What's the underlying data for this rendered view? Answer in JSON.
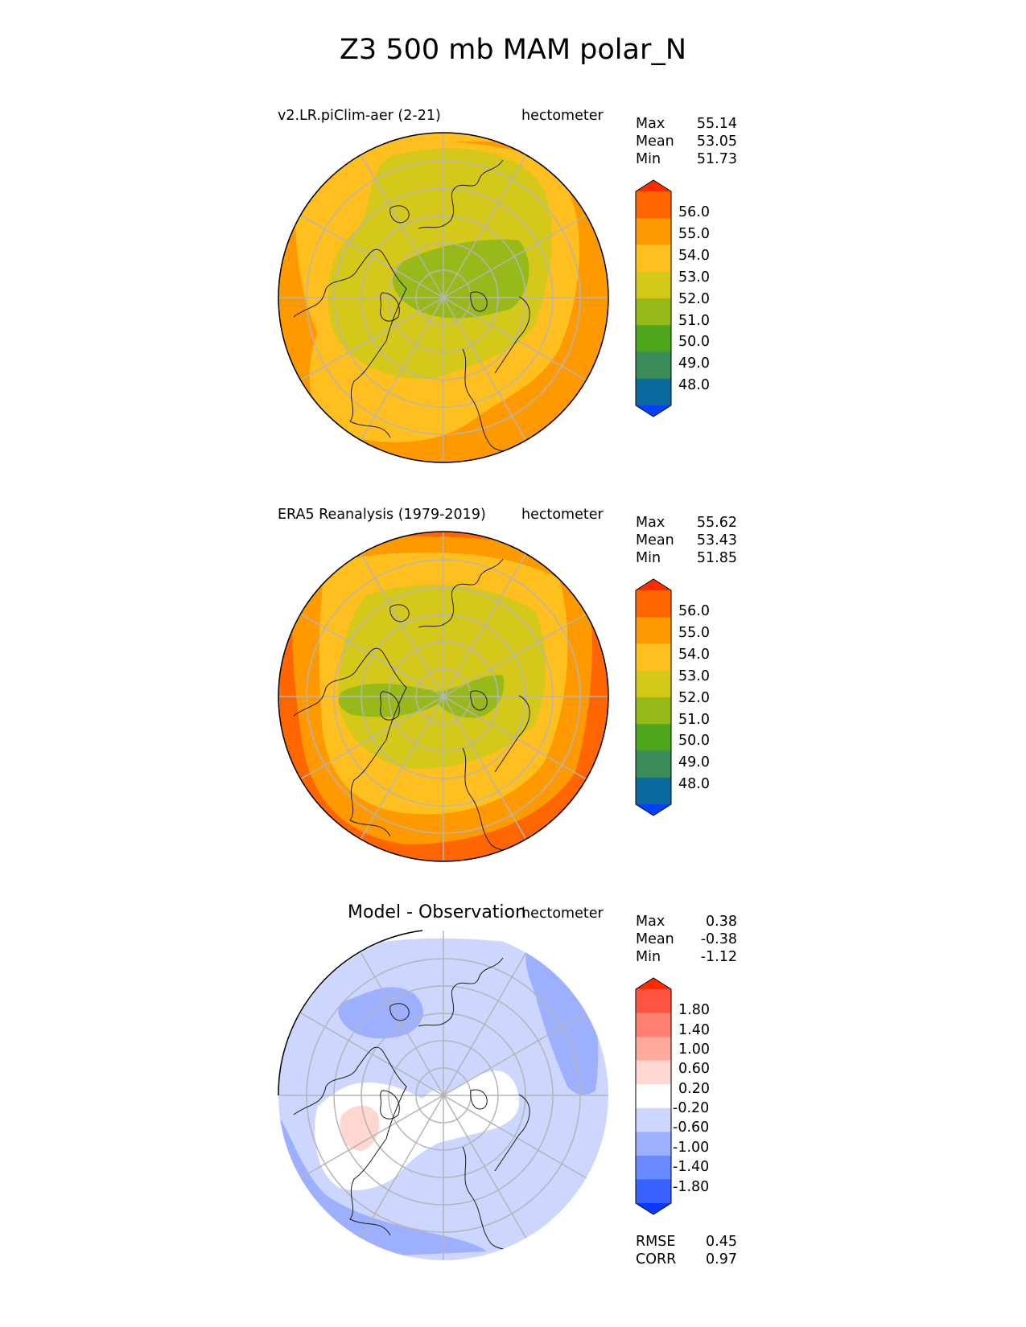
{
  "figure_title": "Z3 500 mb MAM polar_N",
  "panels": [
    {
      "id": "test",
      "title_left": "v2.LR.piClim-aer (2-21)",
      "units": "hectometer",
      "stats": [
        {
          "label": "Max",
          "value": "55.14"
        },
        {
          "label": "Mean",
          "value": "53.05"
        },
        {
          "label": "Min",
          "value": "51.73"
        }
      ],
      "colorbar": {
        "levels": [
          "56.0",
          "55.0",
          "54.0",
          "53.0",
          "52.0",
          "51.0",
          "50.0",
          "49.0",
          "48.0"
        ],
        "colors": [
          "#ff2a00",
          "#ff6600",
          "#ff9900",
          "#ffbf1f",
          "#d4c81a",
          "#97b91a",
          "#4fa51c",
          "#3a8a5a",
          "#0a6aa0",
          "#0040ff"
        ]
      }
    },
    {
      "id": "ref",
      "title_left": "ERA5 Reanalysis (1979-2019)",
      "units": "hectometer",
      "stats": [
        {
          "label": "Max",
          "value": "55.62"
        },
        {
          "label": "Mean",
          "value": "53.43"
        },
        {
          "label": "Min",
          "value": "51.85"
        }
      ],
      "colorbar": {
        "levels": [
          "56.0",
          "55.0",
          "54.0",
          "53.0",
          "52.0",
          "51.0",
          "50.0",
          "49.0",
          "48.0"
        ],
        "colors": [
          "#ff2a00",
          "#ff6600",
          "#ff9900",
          "#ffbf1f",
          "#d4c81a",
          "#97b91a",
          "#4fa51c",
          "#3a8a5a",
          "#0a6aa0",
          "#0040ff"
        ]
      }
    },
    {
      "id": "diff",
      "title_center": "Model - Observation",
      "units": "hectometer",
      "stats": [
        {
          "label": "Max",
          "value": "0.38"
        },
        {
          "label": "Mean",
          "value": "-0.38"
        },
        {
          "label": "Min",
          "value": "-1.12"
        }
      ],
      "colorbar": {
        "levels": [
          "1.80",
          "1.40",
          "1.00",
          "0.60",
          "0.20",
          "-0.20",
          "-0.60",
          "-1.00",
          "-1.40",
          "-1.80"
        ],
        "colors": [
          "#ff2a00",
          "#ff5540",
          "#ff8070",
          "#ffaa9c",
          "#ffd6d0",
          "#ffffff",
          "#cdd6ff",
          "#9db0ff",
          "#6a88ff",
          "#3a62ff",
          "#0a3aff"
        ]
      },
      "metrics": [
        {
          "label": "RMSE",
          "value": "0.45"
        },
        {
          "label": "CORR",
          "value": "0.97"
        }
      ]
    }
  ]
}
